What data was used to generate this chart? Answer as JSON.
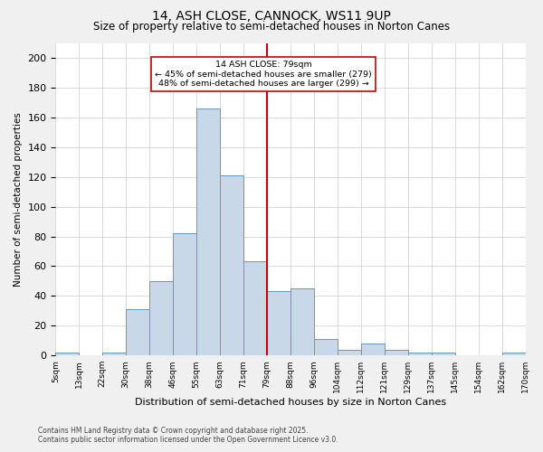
{
  "title1": "14, ASH CLOSE, CANNOCK, WS11 9UP",
  "title2": "Size of property relative to semi-detached houses in Norton Canes",
  "xlabel": "Distribution of semi-detached houses by size in Norton Canes",
  "ylabel": "Number of semi-detached properties",
  "footnote1": "Contains HM Land Registry data © Crown copyright and database right 2025.",
  "footnote2": "Contains public sector information licensed under the Open Government Licence v3.0.",
  "annotation_line1": "14 ASH CLOSE: 79sqm",
  "annotation_line2": "← 45% of semi-detached houses are smaller (279)",
  "annotation_line3": "48% of semi-detached houses are larger (299) →",
  "bin_labels": [
    "5sqm",
    "13sqm",
    "22sqm",
    "30sqm",
    "38sqm",
    "46sqm",
    "55sqm",
    "63sqm",
    "71sqm",
    "79sqm",
    "88sqm",
    "96sqm",
    "104sqm",
    "112sqm",
    "121sqm",
    "129sqm",
    "137sqm",
    "145sqm",
    "154sqm",
    "162sqm",
    "170sqm"
  ],
  "bar_values": [
    2,
    0,
    2,
    31,
    50,
    82,
    166,
    121,
    63,
    43,
    45,
    11,
    4,
    8,
    4,
    2,
    2,
    0,
    0,
    2
  ],
  "bar_color": "#c8d8e8",
  "bar_edge_color": "#6699bb",
  "vline_color": "#cc0000",
  "ylim": [
    0,
    210
  ],
  "yticks": [
    0,
    20,
    40,
    60,
    80,
    100,
    120,
    140,
    160,
    180,
    200
  ],
  "bg_color": "#f0f0f0",
  "plot_bg_color": "#ffffff",
  "grid_color": "#cccccc",
  "annotation_box_edge": "#cc0000"
}
